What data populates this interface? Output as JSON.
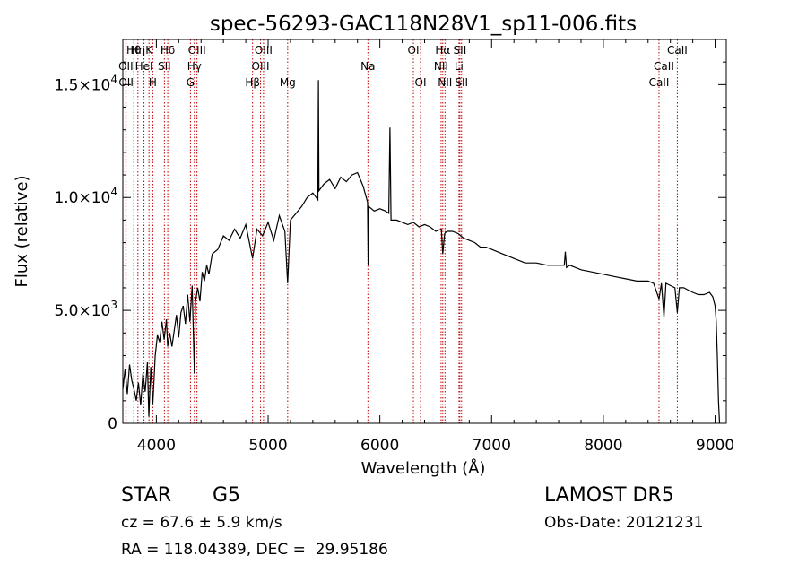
{
  "chart_data": {
    "type": "line",
    "title": "spec-56293-GAC118N28V1_sp11-006.fits",
    "xlabel": "Wavelength (Å)",
    "ylabel": "Flux (relative)",
    "xlim": [
      3700,
      9100
    ],
    "ylim": [
      0,
      17000
    ],
    "x_ticks": [
      4000,
      5000,
      6000,
      7000,
      8000,
      9000
    ],
    "x_tick_labels": [
      "4000",
      "5000",
      "6000",
      "7000",
      "8000",
      "9000"
    ],
    "y_ticks": [
      0,
      5000,
      10000,
      15000
    ],
    "y_tick_labels": [
      {
        "mant": "0",
        "exp": ""
      },
      {
        "mant": "5.0×10",
        "exp": "3"
      },
      {
        "mant": "1.0×10",
        "exp": "4"
      },
      {
        "mant": "1.5×10",
        "exp": "4"
      }
    ],
    "grid": false,
    "legend": "none",
    "line_color": "#000000",
    "marker_color": "#c00000",
    "series": [
      {
        "x": [
          3700,
          3720,
          3740,
          3760,
          3780,
          3800,
          3820,
          3840,
          3860,
          3880,
          3900,
          3920,
          3933,
          3950,
          3968,
          3990,
          4010,
          4030,
          4050,
          4070,
          4090,
          4101,
          4120,
          4140,
          4160,
          4180,
          4200,
          4220,
          4240,
          4260,
          4280,
          4300,
          4320,
          4340,
          4350,
          4370,
          4390,
          4410,
          4430,
          4450,
          4470,
          4500,
          4550,
          4600,
          4650,
          4700,
          4750,
          4800,
          4861,
          4900,
          4950,
          5000,
          5050,
          5100,
          5150,
          5175,
          5200,
          5250,
          5300,
          5350,
          5400,
          5445,
          5450,
          5455,
          5500,
          5550,
          5600,
          5650,
          5700,
          5750,
          5800,
          5850,
          5890,
          5895,
          5900,
          5950,
          6000,
          6050,
          6080,
          6090,
          6100,
          6150,
          6200,
          6250,
          6300,
          6350,
          6400,
          6450,
          6500,
          6550,
          6563,
          6580,
          6600,
          6650,
          6700,
          6750,
          6800,
          6850,
          6900,
          6950,
          7000,
          7100,
          7200,
          7300,
          7400,
          7500,
          7600,
          7650,
          7660,
          7670,
          7700,
          7800,
          7900,
          8000,
          8100,
          8200,
          8300,
          8400,
          8450,
          8498,
          8520,
          8542,
          8560,
          8600,
          8640,
          8662,
          8680,
          8720,
          8760,
          8800,
          8850,
          8900,
          8950,
          8980,
          9000,
          9010,
          9020,
          9030,
          9040
        ],
        "y": [
          1500,
          2400,
          1300,
          2600,
          1900,
          1500,
          1000,
          1800,
          800,
          2200,
          1400,
          2700,
          300,
          2500,
          800,
          3000,
          3900,
          3600,
          4500,
          3700,
          4600,
          3400,
          4000,
          3400,
          4100,
          4800,
          3800,
          4900,
          5200,
          4400,
          5700,
          4500,
          6100,
          2200,
          5400,
          6000,
          5400,
          6700,
          6300,
          7000,
          6600,
          7500,
          7700,
          8300,
          8100,
          8600,
          8200,
          8800,
          7300,
          8600,
          8300,
          8900,
          8100,
          9200,
          8500,
          6200,
          9000,
          9300,
          9600,
          10000,
          10200,
          9900,
          15200,
          10300,
          10600,
          10800,
          10400,
          10900,
          10700,
          11000,
          11100,
          10500,
          9800,
          7000,
          9600,
          9400,
          9500,
          9400,
          9300,
          13100,
          9000,
          9000,
          8900,
          8800,
          8900,
          8700,
          8800,
          8700,
          8500,
          8600,
          7500,
          8400,
          8500,
          8500,
          8400,
          8200,
          8100,
          8000,
          7800,
          7800,
          7700,
          7500,
          7300,
          7100,
          7100,
          7000,
          7000,
          7000,
          7600,
          6900,
          7000,
          6800,
          6700,
          6600,
          6500,
          6400,
          6300,
          6300,
          6200,
          5500,
          6200,
          4700,
          6200,
          6100,
          6000,
          4900,
          6000,
          6000,
          5900,
          5800,
          5700,
          5700,
          5800,
          5600,
          5200,
          4500,
          3000,
          1000,
          0
        ]
      }
    ],
    "line_markers": {
      "rows": [
        [
          {
            "label": "Hθ",
            "x": 3798
          },
          {
            "label": "Hη",
            "x": 3835
          },
          {
            "label": "K",
            "x": 3934
          },
          {
            "label": "Hδ",
            "x": 4102
          },
          {
            "label": "OIII",
            "x": 4363
          },
          {
            "label": "OIII",
            "x": 4959
          },
          {
            "label": "OI",
            "x": 6300
          },
          {
            "label": "Hα",
            "x": 6563
          },
          {
            "label": "SII",
            "x": 6716
          },
          {
            "label": "CaII",
            "x": 8662
          }
        ],
        [
          {
            "label": "OII",
            "x": 3727
          },
          {
            "label": "HeI",
            "x": 3889
          },
          {
            "label": "SII",
            "x": 4072
          },
          {
            "label": "Hγ",
            "x": 4340
          },
          {
            "label": "OIII",
            "x": 4932
          },
          {
            "label": "Na",
            "x": 5893
          },
          {
            "label": "NII",
            "x": 6548
          },
          {
            "label": "Li",
            "x": 6708
          },
          {
            "label": "CaII",
            "x": 8542
          }
        ],
        [
          {
            "label": "OII",
            "x": 3729
          },
          {
            "label": "H",
            "x": 3968
          },
          {
            "label": "G",
            "x": 4305
          },
          {
            "label": "Hβ",
            "x": 4861
          },
          {
            "label": "Mg",
            "x": 5175
          },
          {
            "label": "OI",
            "x": 6364
          },
          {
            "label": "NII",
            "x": 6583
          },
          {
            "label": "SII",
            "x": 6731
          },
          {
            "label": "CaII",
            "x": 8498
          }
        ]
      ]
    }
  },
  "info": {
    "object_class": "STAR",
    "subclass": "G5",
    "survey": "LAMOST DR5",
    "cz": "cz = 67.6 ± 5.9 km/s",
    "obs_date": "Obs-Date: 20121231",
    "coords": "RA = 118.04389, DEC =  29.95186"
  }
}
